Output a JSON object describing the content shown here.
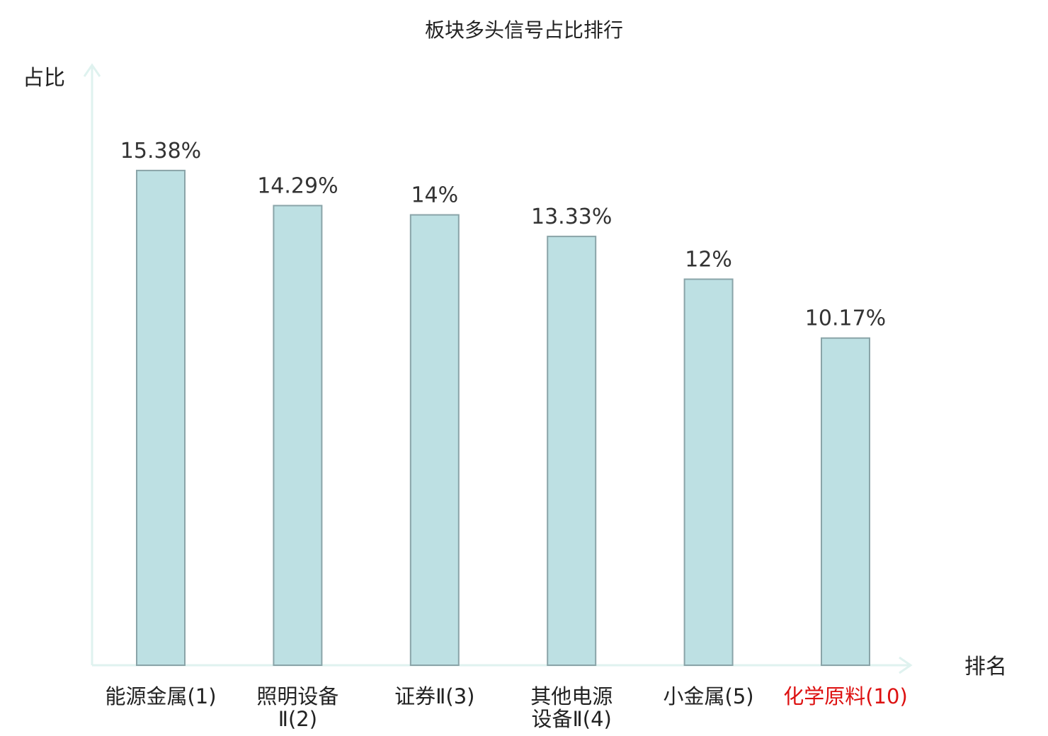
{
  "chart_data": {
    "type": "bar",
    "title": "板块多头信号占比排行",
    "ylabel": "占比",
    "xlabel": "排名",
    "ylim": [
      0,
      16.5
    ],
    "categories": [
      [
        "能源金属(1)"
      ],
      [
        "照明设备",
        "Ⅱ(2)"
      ],
      [
        "证券Ⅱ(3)"
      ],
      [
        "其他电源",
        "设备Ⅱ(4)"
      ],
      [
        "小金属(5)"
      ],
      [
        "化学原料(10)"
      ]
    ],
    "values": [
      15.38,
      14.29,
      14,
      13.33,
      12,
      10.17
    ],
    "value_labels": [
      "15.38%",
      "14.29%",
      "14%",
      "13.33%",
      "12%",
      "10.17%"
    ],
    "highlight_index": 5,
    "colors": {
      "bar_fill": "#bde0e3",
      "bar_stroke": "#8aa4a8",
      "axis": "#dff2ef",
      "text": "#222222",
      "highlight_text": "#dd1111"
    }
  }
}
